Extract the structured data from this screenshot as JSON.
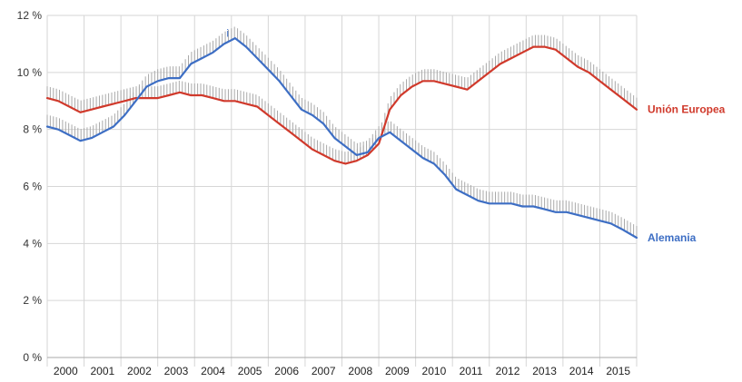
{
  "chart_data": {
    "type": "line",
    "title": "",
    "xlabel": "",
    "ylabel": "",
    "y_unit_suffix": " %",
    "ylim": [
      0,
      12
    ],
    "y_ticks": [
      0,
      2,
      4,
      6,
      8,
      10,
      12
    ],
    "y_tick_labels": [
      "0 %",
      "2 %",
      "4 %",
      "6 %",
      "8 %",
      "10 %",
      "12 %"
    ],
    "xlim": [
      2000.0,
      2016.0
    ],
    "x_tick_labels": [
      "2000",
      "2001",
      "2002",
      "2003",
      "2004",
      "2005",
      "2006",
      "2007",
      "2008",
      "2009",
      "2010",
      "2011",
      "2012",
      "2013",
      "2014",
      "2015"
    ],
    "grid": true,
    "legend": "inline-right",
    "annotations": [
      {
        "text": "i",
        "series": "Alemania",
        "x": 2004.9
      }
    ],
    "series": [
      {
        "name": "Unión Europea",
        "color": "#d0392b",
        "x": [
          2000.0,
          2000.3,
          2000.6,
          2000.9,
          2001.2,
          2001.5,
          2001.8,
          2002.1,
          2002.4,
          2002.7,
          2003.0,
          2003.3,
          2003.6,
          2003.9,
          2004.2,
          2004.5,
          2004.8,
          2005.1,
          2005.4,
          2005.7,
          2006.0,
          2006.3,
          2006.6,
          2006.9,
          2007.2,
          2007.5,
          2007.8,
          2008.1,
          2008.4,
          2008.7,
          2009.0,
          2009.3,
          2009.6,
          2009.9,
          2010.2,
          2010.5,
          2010.8,
          2011.1,
          2011.4,
          2011.7,
          2012.0,
          2012.3,
          2012.6,
          2012.9,
          2013.2,
          2013.5,
          2013.8,
          2014.1,
          2014.4,
          2014.7,
          2015.0,
          2015.3,
          2015.6,
          2016.0
        ],
        "values": [
          9.1,
          9.0,
          8.8,
          8.6,
          8.7,
          8.8,
          8.9,
          9.0,
          9.1,
          9.1,
          9.1,
          9.2,
          9.3,
          9.2,
          9.2,
          9.1,
          9.0,
          9.0,
          8.9,
          8.8,
          8.5,
          8.2,
          7.9,
          7.6,
          7.3,
          7.1,
          6.9,
          6.8,
          6.9,
          7.1,
          7.5,
          8.7,
          9.2,
          9.5,
          9.7,
          9.7,
          9.6,
          9.5,
          9.4,
          9.7,
          10.0,
          10.3,
          10.5,
          10.7,
          10.9,
          10.9,
          10.8,
          10.5,
          10.2,
          10.0,
          9.7,
          9.4,
          9.1,
          8.7
        ]
      },
      {
        "name": "Alemania",
        "color": "#3d6ec4",
        "x": [
          2000.0,
          2000.3,
          2000.6,
          2000.9,
          2001.2,
          2001.5,
          2001.8,
          2002.1,
          2002.4,
          2002.7,
          2003.0,
          2003.3,
          2003.6,
          2003.9,
          2004.2,
          2004.5,
          2004.8,
          2005.1,
          2005.4,
          2005.7,
          2006.0,
          2006.3,
          2006.6,
          2006.9,
          2007.2,
          2007.5,
          2007.8,
          2008.1,
          2008.4,
          2008.7,
          2009.0,
          2009.3,
          2009.6,
          2009.9,
          2010.2,
          2010.5,
          2010.8,
          2011.1,
          2011.4,
          2011.7,
          2012.0,
          2012.3,
          2012.6,
          2012.9,
          2013.2,
          2013.5,
          2013.8,
          2014.1,
          2014.4,
          2014.7,
          2015.0,
          2015.3,
          2015.6,
          2016.0
        ],
        "values": [
          8.1,
          8.0,
          7.8,
          7.6,
          7.7,
          7.9,
          8.1,
          8.5,
          9.0,
          9.5,
          9.7,
          9.8,
          9.8,
          10.3,
          10.5,
          10.7,
          11.0,
          11.2,
          10.9,
          10.5,
          10.1,
          9.7,
          9.2,
          8.7,
          8.5,
          8.2,
          7.7,
          7.4,
          7.1,
          7.2,
          7.7,
          7.9,
          7.6,
          7.3,
          7.0,
          6.8,
          6.4,
          5.9,
          5.7,
          5.5,
          5.4,
          5.4,
          5.4,
          5.3,
          5.3,
          5.2,
          5.1,
          5.1,
          5.0,
          4.9,
          4.8,
          4.7,
          4.5,
          4.2
        ]
      }
    ]
  }
}
